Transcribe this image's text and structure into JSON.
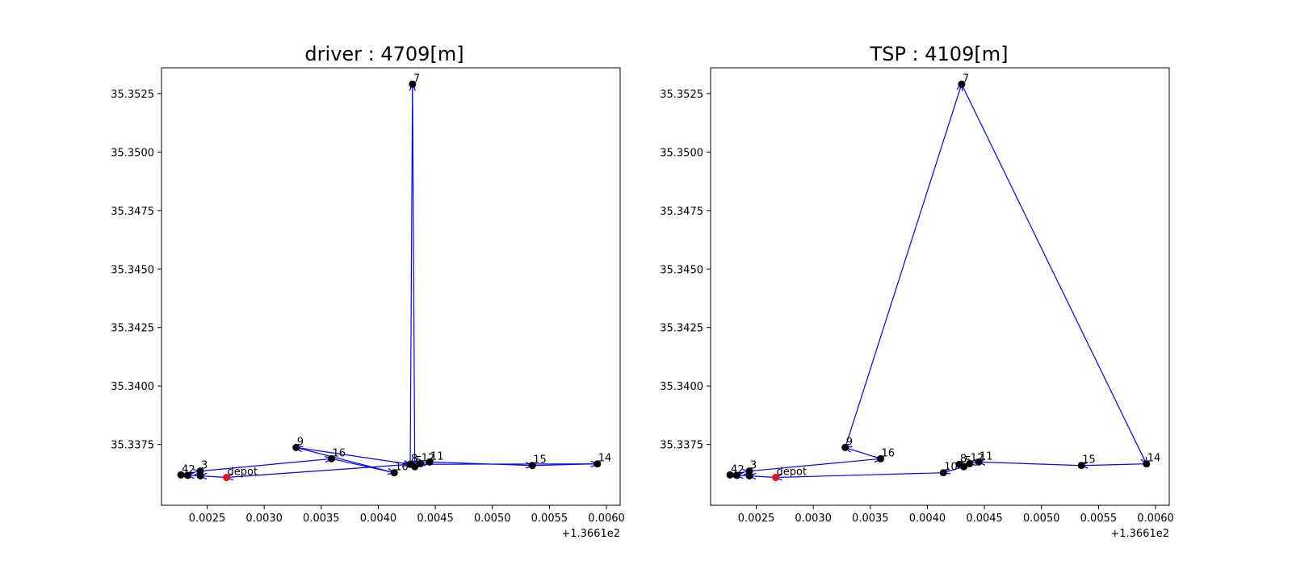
{
  "chart_data": [
    {
      "type": "scatter",
      "title": "driver : 4709[m]",
      "xlabel": "",
      "ylabel": "",
      "x_offset_label": "+1.3661e2",
      "xlim": [
        0.0021,
        0.00612
      ],
      "ylim": [
        35.3349,
        35.3536
      ],
      "xticks": [
        0.0025,
        0.003,
        0.0035,
        0.004,
        0.0045,
        0.005,
        0.0055,
        0.006
      ],
      "xtick_labels": [
        "0.0025",
        "0.0030",
        "0.0035",
        "0.0040",
        "0.0045",
        "0.0050",
        "0.0055",
        "0.0060"
      ],
      "yticks": [
        35.3525,
        35.35,
        35.3475,
        35.345,
        35.3425,
        35.34,
        35.3375
      ],
      "ytick_labels": [
        "35.3525",
        "35.3500",
        "35.3475",
        "35.3450",
        "35.3425",
        "35.3400",
        "35.3375"
      ],
      "grid": false,
      "points": [
        {
          "label": "depot",
          "x": 0.00267,
          "y": 35.33609,
          "color": "#e8141c"
        },
        {
          "label": "4",
          "x": 0.00227,
          "y": 35.3362,
          "color": "#000000"
        },
        {
          "label": "2",
          "x": 0.00233,
          "y": 35.33618,
          "color": "#000000"
        },
        {
          "label": "3",
          "x": 0.00244,
          "y": 35.33636,
          "color": "#000000"
        },
        {
          "label": "",
          "x": 0.00244,
          "y": 35.33616,
          "color": "#000000"
        },
        {
          "label": "9",
          "x": 0.00328,
          "y": 35.33737,
          "color": "#000000"
        },
        {
          "label": "16",
          "x": 0.00359,
          "y": 35.33689,
          "color": "#000000"
        },
        {
          "label": "10",
          "x": 0.00414,
          "y": 35.33629,
          "color": "#000000"
        },
        {
          "label": "8",
          "x": 0.00428,
          "y": 35.33665,
          "color": "#000000"
        },
        {
          "label": "5",
          "x": 0.00432,
          "y": 35.33655,
          "color": "#000000"
        },
        {
          "label": "12",
          "x": 0.00437,
          "y": 35.33668,
          "color": "#000000"
        },
        {
          "label": "11",
          "x": 0.00445,
          "y": 35.33675,
          "color": "#000000"
        },
        {
          "label": "15",
          "x": 0.00535,
          "y": 35.3366,
          "color": "#000000"
        },
        {
          "label": "14",
          "x": 0.00592,
          "y": 35.33667,
          "color": "#000000"
        },
        {
          "label": "7",
          "x": 0.0043,
          "y": 35.3529,
          "color": "#000000"
        }
      ],
      "route_color": "#0000ff",
      "route": [
        [
          0.00267,
          35.33609
        ],
        [
          0.00244,
          35.33616
        ],
        [
          0.00233,
          35.33618
        ],
        [
          0.00227,
          35.3362
        ],
        [
          0.00244,
          35.33636
        ],
        [
          0.00359,
          35.33689
        ],
        [
          0.00414,
          35.33629
        ],
        [
          0.00328,
          35.33737
        ],
        [
          0.00428,
          35.33665
        ],
        [
          0.0043,
          35.3529
        ],
        [
          0.00432,
          35.33655
        ],
        [
          0.00437,
          35.33668
        ],
        [
          0.00445,
          35.33675
        ],
        [
          0.00535,
          35.3366
        ],
        [
          0.00592,
          35.33667
        ],
        [
          0.00428,
          35.33665
        ],
        [
          0.00267,
          35.33609
        ]
      ]
    },
    {
      "type": "scatter",
      "title": "TSP : 4109[m]",
      "xlabel": "",
      "ylabel": "",
      "x_offset_label": "+1.3661e2",
      "xlim": [
        0.0021,
        0.00612
      ],
      "ylim": [
        35.3349,
        35.3536
      ],
      "xticks": [
        0.0025,
        0.003,
        0.0035,
        0.004,
        0.0045,
        0.005,
        0.0055,
        0.006
      ],
      "xtick_labels": [
        "0.0025",
        "0.0030",
        "0.0035",
        "0.0040",
        "0.0045",
        "0.0050",
        "0.0055",
        "0.0060"
      ],
      "yticks": [
        35.3525,
        35.35,
        35.3475,
        35.345,
        35.3425,
        35.34,
        35.3375
      ],
      "ytick_labels": [
        "35.3525",
        "35.3500",
        "35.3475",
        "35.3450",
        "35.3425",
        "35.3400",
        "35.3375"
      ],
      "grid": false,
      "points": [
        {
          "label": "depot",
          "x": 0.00267,
          "y": 35.33609,
          "color": "#e8141c"
        },
        {
          "label": "4",
          "x": 0.00227,
          "y": 35.3362,
          "color": "#000000"
        },
        {
          "label": "2",
          "x": 0.00233,
          "y": 35.33618,
          "color": "#000000"
        },
        {
          "label": "3",
          "x": 0.00244,
          "y": 35.33636,
          "color": "#000000"
        },
        {
          "label": "",
          "x": 0.00244,
          "y": 35.33616,
          "color": "#000000"
        },
        {
          "label": "9",
          "x": 0.00328,
          "y": 35.33737,
          "color": "#000000"
        },
        {
          "label": "16",
          "x": 0.00359,
          "y": 35.33689,
          "color": "#000000"
        },
        {
          "label": "10",
          "x": 0.00414,
          "y": 35.33629,
          "color": "#000000"
        },
        {
          "label": "8",
          "x": 0.00428,
          "y": 35.33665,
          "color": "#000000"
        },
        {
          "label": "5",
          "x": 0.00432,
          "y": 35.33655,
          "color": "#000000"
        },
        {
          "label": "12",
          "x": 0.00437,
          "y": 35.33668,
          "color": "#000000"
        },
        {
          "label": "11",
          "x": 0.00445,
          "y": 35.33675,
          "color": "#000000"
        },
        {
          "label": "15",
          "x": 0.00535,
          "y": 35.3366,
          "color": "#000000"
        },
        {
          "label": "14",
          "x": 0.00592,
          "y": 35.33667,
          "color": "#000000"
        },
        {
          "label": "7",
          "x": 0.0043,
          "y": 35.3529,
          "color": "#000000"
        }
      ],
      "route_color": "#0000ff",
      "route": [
        [
          0.00267,
          35.33609
        ],
        [
          0.00244,
          35.33616
        ],
        [
          0.00233,
          35.33618
        ],
        [
          0.00227,
          35.3362
        ],
        [
          0.00244,
          35.33636
        ],
        [
          0.00359,
          35.33689
        ],
        [
          0.00328,
          35.33737
        ],
        [
          0.0043,
          35.3529
        ],
        [
          0.00592,
          35.33667
        ],
        [
          0.00535,
          35.3366
        ],
        [
          0.00445,
          35.33675
        ],
        [
          0.00437,
          35.33668
        ],
        [
          0.00428,
          35.33665
        ],
        [
          0.00432,
          35.33655
        ],
        [
          0.00414,
          35.33629
        ],
        [
          0.00267,
          35.33609
        ]
      ]
    }
  ]
}
